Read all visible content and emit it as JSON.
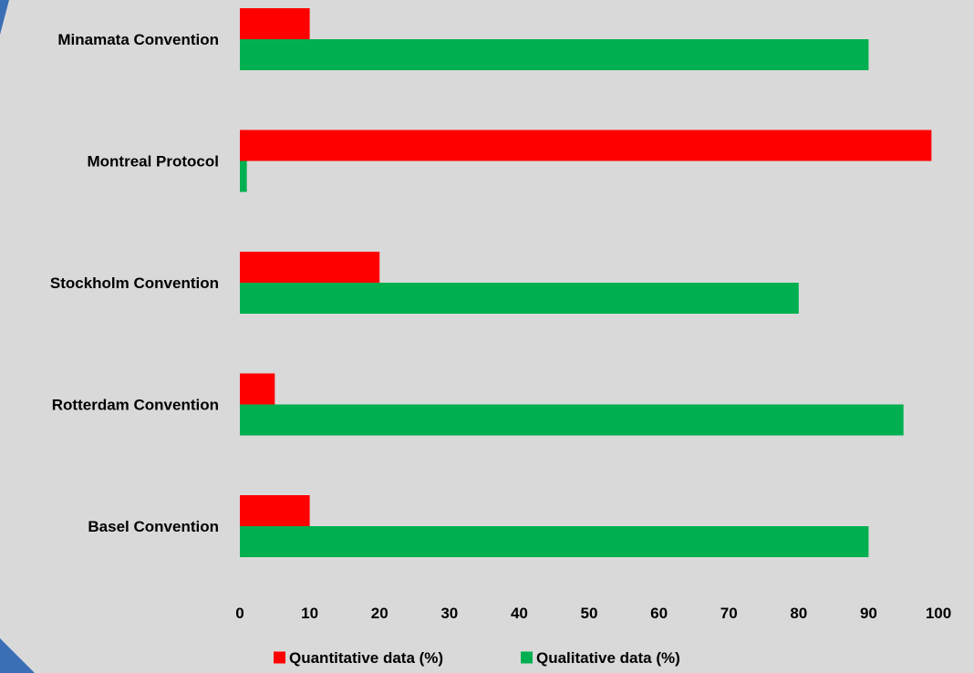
{
  "chart_data": {
    "type": "bar",
    "orientation": "horizontal",
    "categories": [
      "Minamata Convention",
      "Montreal Protocol",
      "Stockholm Convention",
      "Rotterdam Convention",
      "Basel Convention"
    ],
    "series": [
      {
        "name": "Quantitative data (%)",
        "color": "#ff0000",
        "values": [
          10,
          99,
          20,
          5,
          10
        ]
      },
      {
        "name": "Qualitative data (%)",
        "color": "#00b050",
        "values": [
          90,
          1,
          80,
          95,
          90
        ]
      }
    ],
    "xlim": [
      0,
      100
    ],
    "x_ticks": [
      "0",
      "10",
      "20",
      "30",
      "40",
      "50",
      "60",
      "70",
      "80",
      "90",
      "100"
    ],
    "grid": false,
    "legend_position": "bottom",
    "background_color": "#d9d9d9",
    "title": "",
    "xlabel": "",
    "ylabel": ""
  }
}
